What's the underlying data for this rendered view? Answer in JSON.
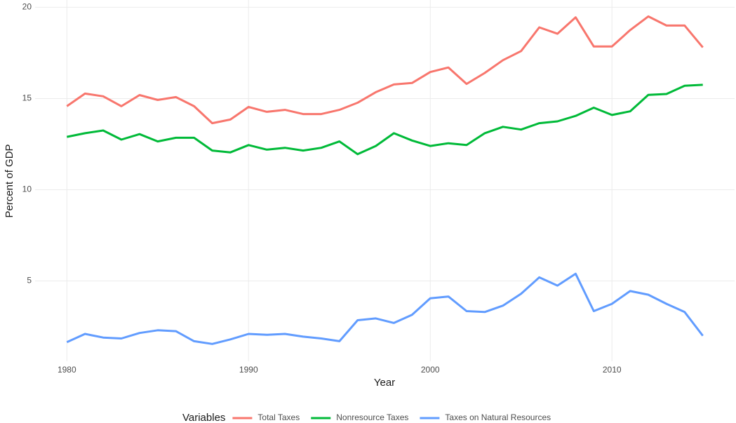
{
  "chart_data": {
    "type": "line",
    "x_label": "Year",
    "y_label": "Percent of GDP",
    "legend_title": "Variables",
    "legend_position": "bottom",
    "grid": true,
    "x": [
      1980,
      1981,
      1982,
      1983,
      1984,
      1985,
      1986,
      1987,
      1988,
      1989,
      1990,
      1991,
      1992,
      1993,
      1994,
      1995,
      1996,
      1997,
      1998,
      1999,
      2000,
      2001,
      2002,
      2003,
      2004,
      2005,
      2006,
      2007,
      2008,
      2009,
      2010,
      2011,
      2012,
      2013,
      2014,
      2015
    ],
    "xlim": [
      1978.25,
      2016.75
    ],
    "xticks": [
      1980,
      1990,
      2000,
      2010
    ],
    "ylim": [
      0.6,
      20.4
    ],
    "yticks": [
      5,
      10,
      15,
      20
    ],
    "series": [
      {
        "name": "Total Taxes",
        "color": "#f8766d",
        "values": [
          14.58,
          15.27,
          15.12,
          14.58,
          15.19,
          14.92,
          15.08,
          14.58,
          13.65,
          13.85,
          14.54,
          14.27,
          14.38,
          14.15,
          14.15,
          14.38,
          14.77,
          15.35,
          15.77,
          15.85,
          16.45,
          16.7,
          15.8,
          16.4,
          17.1,
          17.6,
          18.9,
          18.55,
          19.45,
          17.85,
          17.85,
          18.75,
          19.5,
          19.0,
          19.0,
          17.8
        ]
      },
      {
        "name": "Nonresource Taxes",
        "color": "#00ba38",
        "values": [
          12.9,
          13.1,
          13.25,
          12.75,
          13.05,
          12.65,
          12.85,
          12.85,
          12.15,
          12.05,
          12.45,
          12.2,
          12.3,
          12.15,
          12.3,
          12.65,
          11.95,
          12.4,
          13.1,
          12.7,
          12.4,
          12.55,
          12.45,
          13.1,
          13.45,
          13.3,
          13.65,
          13.75,
          14.05,
          14.5,
          14.1,
          14.3,
          15.2,
          15.25,
          15.7,
          15.75
        ]
      },
      {
        "name": "Taxes on Natural Resources",
        "color": "#619cff",
        "values": [
          1.65,
          2.1,
          1.9,
          1.85,
          2.15,
          2.3,
          2.25,
          1.7,
          1.55,
          1.8,
          2.1,
          2.05,
          2.1,
          1.95,
          1.85,
          1.7,
          2.85,
          2.95,
          2.7,
          3.15,
          4.05,
          4.15,
          3.35,
          3.3,
          3.65,
          4.3,
          5.2,
          4.75,
          5.4,
          3.35,
          3.75,
          4.45,
          4.25,
          3.75,
          3.3,
          2.0
        ]
      }
    ]
  }
}
